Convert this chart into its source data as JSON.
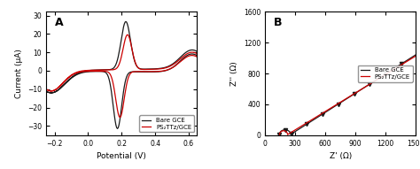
{
  "panel_A": {
    "label": "A",
    "xlabel": "Potential (V)",
    "ylabel": "Current (μA)",
    "xlim": [
      -0.25,
      0.65
    ],
    "ylim": [
      -35,
      32
    ],
    "xticks": [
      -0.2,
      0.0,
      0.2,
      0.4,
      0.6
    ],
    "yticks": [
      -30,
      -20,
      -10,
      0,
      10,
      20,
      30
    ],
    "bare_gce_color": "#1a1a1a",
    "ps2_gce_color": "#cc0000",
    "legend_labels": [
      "Bare GCE",
      "PS₂TTz/GCE"
    ],
    "legend_loc": "lower right"
  },
  "panel_B": {
    "label": "B",
    "xlabel": "Z' (Ω)",
    "ylabel": "Z'' (Ω)",
    "xlim": [
      0,
      1500
    ],
    "ylim": [
      0,
      1600
    ],
    "xticks": [
      0,
      300,
      600,
      900,
      1200,
      1500
    ],
    "yticks": [
      0,
      400,
      800,
      1200,
      1600
    ],
    "bare_gce_color": "#1a1a1a",
    "ps2_gce_color": "#cc0000",
    "legend_labels": [
      "Bare GCE",
      "PS₂TTz/GCE"
    ],
    "legend_loc": "center right"
  },
  "background_color": "#ffffff",
  "figure_bg": "#ffffff"
}
